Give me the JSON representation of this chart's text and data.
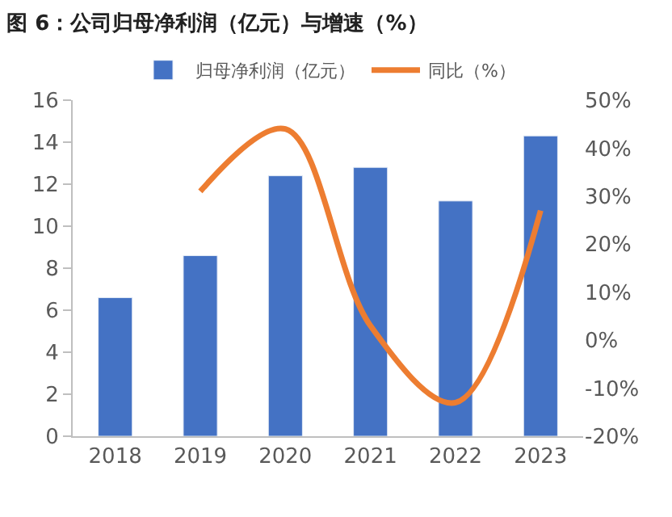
{
  "chart_data": {
    "type": "bar",
    "title": "图 6：公司归母净利润（亿元）与增速（%）",
    "categories": [
      "2018",
      "2019",
      "2020",
      "2021",
      "2022",
      "2023"
    ],
    "series": [
      {
        "name": "归母净利润（亿元）",
        "color": "#4472c4",
        "values": [
          6.6,
          8.6,
          12.4,
          12.8,
          11.2,
          14.3
        ]
      },
      {
        "name": "同比（%）",
        "color": "#ed7d31",
        "type": "line",
        "axis": "y2",
        "values": [
          null,
          31,
          44,
          3,
          -13,
          27
        ]
      }
    ],
    "ylim": [
      0,
      16
    ],
    "yticks": [
      0,
      2,
      4,
      6,
      8,
      10,
      12,
      14,
      16
    ],
    "y2lim": [
      -20,
      50
    ],
    "y2ticks": [
      {
        "value": -20,
        "label": "-20%"
      },
      {
        "value": -10,
        "label": "-10%"
      },
      {
        "value": 0,
        "label": "0%"
      },
      {
        "value": 10,
        "label": "10%"
      },
      {
        "value": 20,
        "label": "20%"
      },
      {
        "value": 30,
        "label": "30%"
      },
      {
        "value": 40,
        "label": "40%"
      },
      {
        "value": 50,
        "label": "50%"
      }
    ],
    "legend": "top",
    "marker": "none",
    "line_style": "solid"
  }
}
